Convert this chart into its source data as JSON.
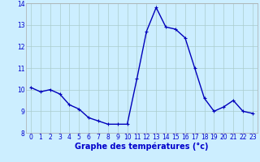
{
  "x": [
    0,
    1,
    2,
    3,
    4,
    5,
    6,
    7,
    8,
    9,
    10,
    11,
    12,
    13,
    14,
    15,
    16,
    17,
    18,
    19,
    20,
    21,
    22,
    23
  ],
  "y": [
    10.1,
    9.9,
    10.0,
    9.8,
    9.3,
    9.1,
    8.7,
    8.55,
    8.4,
    8.4,
    8.4,
    10.5,
    12.7,
    13.8,
    12.9,
    12.8,
    12.4,
    11.0,
    9.6,
    9.0,
    9.2,
    9.5,
    9.0,
    8.9
  ],
  "line_color": "#0000bb",
  "marker": "+",
  "marker_size": 3.5,
  "bg_color": "#cceeff",
  "plot_bg_color": "#cceeff",
  "grid_color": "#aacccc",
  "xlabel": "Graphe des températures (°c)",
  "xlabel_color": "#0000cc",
  "xlabel_fontsize": 7,
  "tick_color": "#0000cc",
  "tick_fontsize": 5.5,
  "ylim": [
    8,
    14
  ],
  "yticks": [
    8,
    9,
    10,
    11,
    12,
    13,
    14
  ],
  "xticks": [
    0,
    1,
    2,
    3,
    4,
    5,
    6,
    7,
    8,
    9,
    10,
    11,
    12,
    13,
    14,
    15,
    16,
    17,
    18,
    19,
    20,
    21,
    22,
    23
  ],
  "line_width": 1.0,
  "spine_color": "#aaaaaa"
}
